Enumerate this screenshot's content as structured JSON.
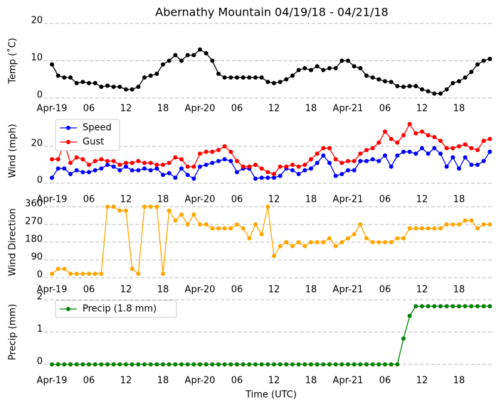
{
  "chart_data": [
    {
      "type": "line",
      "title": "Abernathy Mountain 04/19/18 - 04/21/18",
      "ylabel": "Temp (˚C)",
      "categories": [
        "Apr-19",
        null,
        null,
        null,
        null,
        null,
        "06",
        null,
        null,
        null,
        null,
        null,
        "12",
        null,
        null,
        null,
        null,
        null,
        "18",
        null,
        null,
        null,
        null,
        null,
        "Apr-20",
        null,
        null,
        null,
        null,
        null,
        "06",
        null,
        null,
        null,
        null,
        null,
        "12",
        null,
        null,
        null,
        null,
        null,
        "18",
        null,
        null,
        null,
        null,
        null,
        "Apr-21",
        null,
        null,
        null,
        null,
        null,
        "06",
        null,
        null,
        null,
        null,
        null,
        "12",
        null,
        null,
        null,
        null,
        null,
        "18",
        null,
        null,
        null,
        null,
        null
      ],
      "series": [
        {
          "color": "#000000",
          "values": [
            9,
            6,
            5.5,
            5.5,
            4,
            4.3,
            4,
            4,
            3,
            3.3,
            3,
            3,
            2.3,
            2.3,
            3,
            5.5,
            6,
            6.5,
            9,
            10,
            11.5,
            10,
            11.5,
            11.5,
            13,
            12,
            10,
            6.5,
            5.5,
            5.5,
            5.5,
            5.5,
            5.5,
            5.5,
            5.5,
            4.3,
            4,
            4.3,
            5,
            6,
            7.5,
            8,
            7.5,
            8.5,
            7.5,
            8,
            8,
            10,
            10,
            8.5,
            8,
            6,
            5.5,
            5,
            4.5,
            4.3,
            3.2,
            3,
            3.2,
            3.2,
            2.3,
            1.8,
            1.2,
            1.2,
            2.3,
            4,
            4.5,
            5.5,
            7,
            9,
            10,
            10.5
          ]
        }
      ],
      "ylim": [
        0,
        20
      ],
      "yticks": [
        0,
        10,
        20
      ],
      "grid": true
    },
    {
      "type": "line",
      "ylabel": "Wind (mph)",
      "categories": [
        "Apr-19",
        null,
        null,
        null,
        null,
        null,
        "06",
        null,
        null,
        null,
        null,
        null,
        "12",
        null,
        null,
        null,
        null,
        null,
        "18",
        null,
        null,
        null,
        null,
        null,
        "Apr-20",
        null,
        null,
        null,
        null,
        null,
        "06",
        null,
        null,
        null,
        null,
        null,
        "12",
        null,
        null,
        null,
        null,
        null,
        "18",
        null,
        null,
        null,
        null,
        null,
        "Apr-21",
        null,
        null,
        null,
        null,
        null,
        "06",
        null,
        null,
        null,
        null,
        null,
        "12",
        null,
        null,
        null,
        null,
        null,
        "18",
        null,
        null,
        null,
        null,
        null
      ],
      "series": [
        {
          "name": "Speed",
          "color": "#0000ff",
          "values": [
            3,
            8,
            8,
            5,
            7,
            6,
            6,
            7,
            8,
            10,
            9,
            7,
            9,
            7,
            7,
            8,
            7,
            8,
            4.5,
            5.5,
            3,
            8,
            4.5,
            2.5,
            9,
            10,
            11,
            12,
            13,
            12,
            6,
            8,
            8,
            2.5,
            3,
            3,
            3,
            4,
            8,
            7,
            5,
            7,
            8,
            11,
            15,
            11,
            4,
            5,
            7,
            7,
            12,
            12,
            13,
            12,
            15,
            9,
            15,
            17,
            17,
            16,
            19,
            16,
            19,
            16,
            9,
            14,
            8,
            14,
            10,
            10,
            12,
            17
          ]
        },
        {
          "name": "Gust",
          "color": "#ff0000",
          "values": [
            13,
            13,
            22,
            11,
            14,
            13,
            10,
            12,
            13,
            12,
            12,
            10,
            11,
            11,
            12,
            11,
            11,
            10,
            10,
            11,
            14,
            13,
            9,
            9,
            16,
            17,
            17,
            18,
            20,
            17,
            12,
            9,
            9,
            10,
            8,
            6,
            5,
            9,
            9,
            10,
            9,
            10,
            13,
            16,
            19,
            19,
            13,
            11,
            12,
            12,
            16,
            18,
            19,
            22,
            28,
            24,
            22,
            26,
            32,
            27,
            28,
            26,
            25,
            23,
            19,
            19,
            20,
            21,
            19,
            18,
            23,
            24
          ]
        }
      ],
      "ylim": [
        0,
        35
      ],
      "yticks": [
        0,
        20
      ],
      "grid": true,
      "legend": "upper left"
    },
    {
      "type": "line",
      "ylabel": "Wind Direction",
      "categories": [
        "Apr-19",
        null,
        null,
        null,
        null,
        null,
        "06",
        null,
        null,
        null,
        null,
        null,
        "12",
        null,
        null,
        null,
        null,
        null,
        "18",
        null,
        null,
        null,
        null,
        null,
        "Apr-20",
        null,
        null,
        null,
        null,
        null,
        "06",
        null,
        null,
        null,
        null,
        null,
        "12",
        null,
        null,
        null,
        null,
        null,
        "18",
        null,
        null,
        null,
        null,
        null,
        "Apr-21",
        null,
        null,
        null,
        null,
        null,
        "06",
        null,
        null,
        null,
        null,
        null,
        "12",
        null,
        null,
        null,
        null,
        null,
        "18",
        null,
        null,
        null,
        null,
        null
      ],
      "series": [
        {
          "color": "#ffa500",
          "values": [
            20,
            45,
            45,
            20,
            20,
            20,
            20,
            20,
            20,
            360,
            360,
            340,
            340,
            45,
            20,
            360,
            360,
            360,
            20,
            340,
            290,
            320,
            270,
            320,
            270,
            270,
            250,
            250,
            250,
            250,
            270,
            250,
            200,
            270,
            220,
            360,
            110,
            160,
            180,
            160,
            180,
            160,
            180,
            180,
            180,
            200,
            160,
            180,
            200,
            220,
            270,
            200,
            180,
            180,
            180,
            180,
            200,
            200,
            250,
            250,
            250,
            250,
            250,
            250,
            270,
            270,
            270,
            290,
            290,
            250,
            270,
            270
          ]
        }
      ],
      "ylim": [
        0,
        360
      ],
      "yticks": [
        0,
        90,
        180,
        270,
        360
      ],
      "grid": true
    },
    {
      "type": "line",
      "ylabel": "Precip (mm)",
      "xlabel": "Time (UTC)",
      "categories": [
        "Apr-19",
        null,
        null,
        null,
        null,
        null,
        "06",
        null,
        null,
        null,
        null,
        null,
        "12",
        null,
        null,
        null,
        null,
        null,
        "18",
        null,
        null,
        null,
        null,
        null,
        "Apr-20",
        null,
        null,
        null,
        null,
        null,
        "06",
        null,
        null,
        null,
        null,
        null,
        "12",
        null,
        null,
        null,
        null,
        null,
        "18",
        null,
        null,
        null,
        null,
        null,
        "Apr-21",
        null,
        null,
        null,
        null,
        null,
        "06",
        null,
        null,
        null,
        null,
        null,
        "12",
        null,
        null,
        null,
        null,
        null,
        "18",
        null,
        null,
        null,
        null,
        null
      ],
      "series": [
        {
          "name": "Precip (1.8 mm)",
          "color": "#008000",
          "values": [
            0,
            0,
            0,
            0,
            0,
            0,
            0,
            0,
            0,
            0,
            0,
            0,
            0,
            0,
            0,
            0,
            0,
            0,
            0,
            0,
            0,
            0,
            0,
            0,
            0,
            0,
            0,
            0,
            0,
            0,
            0,
            0,
            0,
            0,
            0,
            0,
            0,
            0,
            0,
            0,
            0,
            0,
            0,
            0,
            0,
            0,
            0,
            0,
            0,
            0,
            0,
            0,
            0,
            0,
            0,
            0,
            0,
            0.8,
            1.5,
            1.8,
            1.8,
            1.8,
            1.8,
            1.8,
            1.8,
            1.8,
            1.8,
            1.8,
            1.8,
            1.8,
            1.8,
            1.8
          ]
        }
      ],
      "ylim": [
        0,
        2
      ],
      "yticks": [
        0,
        1,
        2
      ],
      "grid": true,
      "legend": "upper left"
    }
  ]
}
